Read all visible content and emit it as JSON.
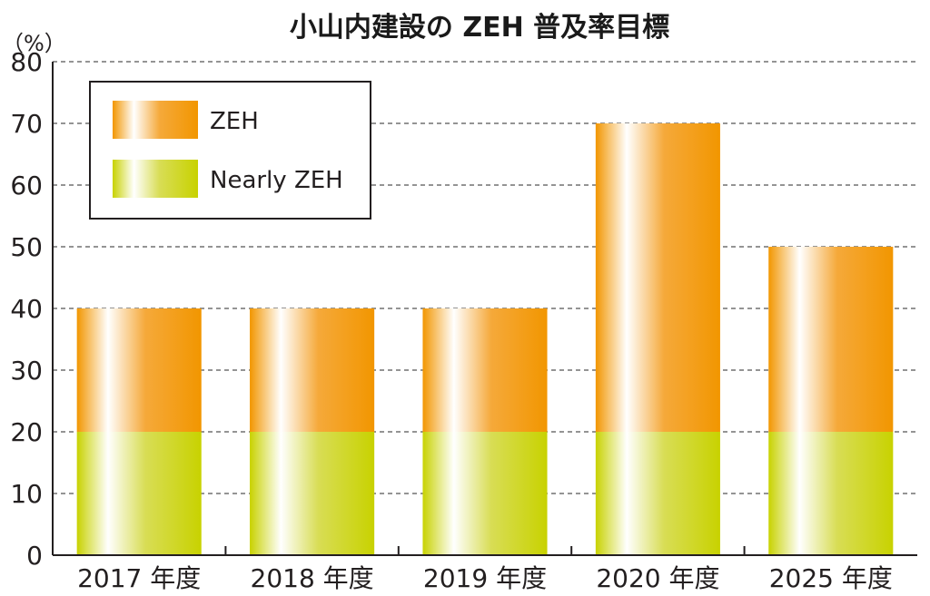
{
  "chart_data": {
    "type": "bar",
    "stacked": true,
    "title": "小山内建設の ZEH 普及率目標",
    "ylabel": "（%）",
    "xlabel": "",
    "categories": [
      "2017 年度",
      "2018 年度",
      "2019 年度",
      "2020 年度",
      "2025 年度"
    ],
    "series": [
      {
        "name": "Nearly ZEH",
        "values": [
          20,
          20,
          20,
          20,
          20
        ],
        "color": "#c8d200"
      },
      {
        "name": "ZEH",
        "values": [
          20,
          20,
          20,
          50,
          30
        ],
        "color": "#f29600"
      }
    ],
    "ylim": [
      0,
      80
    ],
    "yticks": [
      0,
      10,
      20,
      30,
      40,
      50,
      60,
      70,
      80
    ],
    "grid": "horizontal dashed",
    "legend_position": "top-left"
  }
}
